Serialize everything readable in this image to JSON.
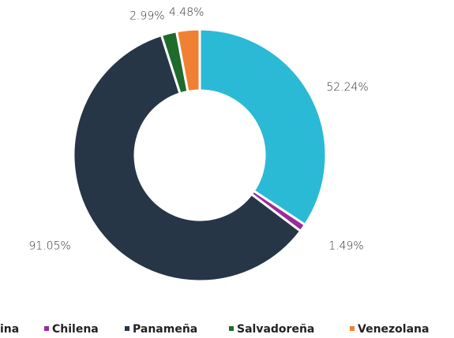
{
  "chart_data": {
    "type": "donut",
    "categories": [
      "ina",
      "Chilena",
      "Panameña",
      "Salvadoreña",
      "Venezolana"
    ],
    "values": [
      52.24,
      1.49,
      91.05,
      2.99,
      4.48
    ],
    "value_labels": [
      "52.24%",
      "1.49%",
      "91.05%",
      "2.99%",
      "4.48%"
    ],
    "colors": [
      "#2bbad5",
      "#9b2b9b",
      "#263646",
      "#1e6b2b",
      "#f08132"
    ],
    "legend": "bottom"
  }
}
